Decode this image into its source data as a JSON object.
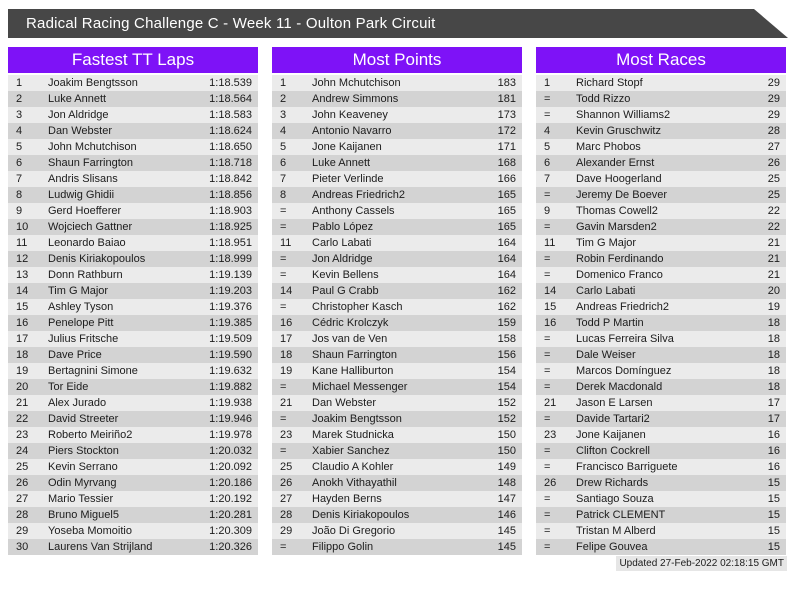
{
  "title": "Radical Racing Challenge C - Week 11 - Oulton Park Circuit",
  "updated": "Updated 27-Feb-2022 02:18:15 GMT",
  "colors": {
    "banner_bg": "#474747",
    "accent": "#7e12f7",
    "row_odd": "#ebebeb",
    "row_even": "#d3d3d3",
    "footer_bg": "#e6e6e6"
  },
  "boards": [
    {
      "title": "Fastest TT Laps",
      "rows": [
        {
          "rank": "1",
          "name": "Joakim Bengtsson",
          "value": "1:18.539"
        },
        {
          "rank": "2",
          "name": "Luke Annett",
          "value": "1:18.564"
        },
        {
          "rank": "3",
          "name": "Jon Aldridge",
          "value": "1:18.583"
        },
        {
          "rank": "4",
          "name": "Dan Webster",
          "value": "1:18.624"
        },
        {
          "rank": "5",
          "name": "John Mchutchison",
          "value": "1:18.650"
        },
        {
          "rank": "6",
          "name": "Shaun Farrington",
          "value": "1:18.718"
        },
        {
          "rank": "7",
          "name": "Andris Slisans",
          "value": "1:18.842"
        },
        {
          "rank": "8",
          "name": "Ludwig Ghidii",
          "value": "1:18.856"
        },
        {
          "rank": "9",
          "name": "Gerd Hoefferer",
          "value": "1:18.903"
        },
        {
          "rank": "10",
          "name": "Wojciech Gattner",
          "value": "1:18.925"
        },
        {
          "rank": "11",
          "name": "Leonardo Baiao",
          "value": "1:18.951"
        },
        {
          "rank": "12",
          "name": "Denis Kiriakopoulos",
          "value": "1:18.999"
        },
        {
          "rank": "13",
          "name": "Donn Rathburn",
          "value": "1:19.139"
        },
        {
          "rank": "14",
          "name": "Tim G Major",
          "value": "1:19.203"
        },
        {
          "rank": "15",
          "name": "Ashley Tyson",
          "value": "1:19.376"
        },
        {
          "rank": "16",
          "name": "Penelope Pitt",
          "value": "1:19.385"
        },
        {
          "rank": "17",
          "name": "Julius Fritsche",
          "value": "1:19.509"
        },
        {
          "rank": "18",
          "name": "Dave Price",
          "value": "1:19.590"
        },
        {
          "rank": "19",
          "name": "Bertagnini Simone",
          "value": "1:19.632"
        },
        {
          "rank": "20",
          "name": "Tor Eide",
          "value": "1:19.882"
        },
        {
          "rank": "21",
          "name": "Alex Jurado",
          "value": "1:19.938"
        },
        {
          "rank": "22",
          "name": "David Streeter",
          "value": "1:19.946"
        },
        {
          "rank": "23",
          "name": "Roberto Meiriño2",
          "value": "1:19.978"
        },
        {
          "rank": "24",
          "name": "Piers Stockton",
          "value": "1:20.032"
        },
        {
          "rank": "25",
          "name": "Kevin Serrano",
          "value": "1:20.092"
        },
        {
          "rank": "26",
          "name": "Odin Myrvang",
          "value": "1:20.186"
        },
        {
          "rank": "27",
          "name": "Mario Tessier",
          "value": "1:20.192"
        },
        {
          "rank": "28",
          "name": "Bruno Miguel5",
          "value": "1:20.281"
        },
        {
          "rank": "29",
          "name": "Yoseba Momoitio",
          "value": "1:20.309"
        },
        {
          "rank": "30",
          "name": "Laurens Van Strijland",
          "value": "1:20.326"
        }
      ]
    },
    {
      "title": "Most Points",
      "rows": [
        {
          "rank": "1",
          "name": "John Mchutchison",
          "value": "183"
        },
        {
          "rank": "2",
          "name": "Andrew Simmons",
          "value": "181"
        },
        {
          "rank": "3",
          "name": "John Keaveney",
          "value": "173"
        },
        {
          "rank": "4",
          "name": "Antonio Navarro",
          "value": "172"
        },
        {
          "rank": "5",
          "name": "Jone Kaijanen",
          "value": "171"
        },
        {
          "rank": "6",
          "name": "Luke Annett",
          "value": "168"
        },
        {
          "rank": "7",
          "name": "Pieter Verlinde",
          "value": "166"
        },
        {
          "rank": "8",
          "name": "Andreas Friedrich2",
          "value": "165"
        },
        {
          "rank": "=",
          "name": "Anthony Cassels",
          "value": "165"
        },
        {
          "rank": "=",
          "name": "Pablo López",
          "value": "165"
        },
        {
          "rank": "11",
          "name": "Carlo Labati",
          "value": "164"
        },
        {
          "rank": "=",
          "name": "Jon Aldridge",
          "value": "164"
        },
        {
          "rank": "=",
          "name": "Kevin Bellens",
          "value": "164"
        },
        {
          "rank": "14",
          "name": "Paul G Crabb",
          "value": "162"
        },
        {
          "rank": "=",
          "name": "Christopher Kasch",
          "value": "162"
        },
        {
          "rank": "16",
          "name": "Cédric Krolczyk",
          "value": "159"
        },
        {
          "rank": "17",
          "name": "Jos van de Ven",
          "value": "158"
        },
        {
          "rank": "18",
          "name": "Shaun Farrington",
          "value": "156"
        },
        {
          "rank": "19",
          "name": "Kane Halliburton",
          "value": "154"
        },
        {
          "rank": "=",
          "name": "Michael Messenger",
          "value": "154"
        },
        {
          "rank": "21",
          "name": "Dan Webster",
          "value": "152"
        },
        {
          "rank": "=",
          "name": "Joakim Bengtsson",
          "value": "152"
        },
        {
          "rank": "23",
          "name": "Marek Studnicka",
          "value": "150"
        },
        {
          "rank": "=",
          "name": "Xabier Sanchez",
          "value": "150"
        },
        {
          "rank": "25",
          "name": "Claudio A Kohler",
          "value": "149"
        },
        {
          "rank": "26",
          "name": "Anokh Vithayathil",
          "value": "148"
        },
        {
          "rank": "27",
          "name": "Hayden Berns",
          "value": "147"
        },
        {
          "rank": "28",
          "name": "Denis Kiriakopoulos",
          "value": "146"
        },
        {
          "rank": "29",
          "name": "João Di Gregorio",
          "value": "145"
        },
        {
          "rank": "=",
          "name": "Filippo Golin",
          "value": "145"
        }
      ]
    },
    {
      "title": "Most Races",
      "rows": [
        {
          "rank": "1",
          "name": "Richard Stopf",
          "value": "29"
        },
        {
          "rank": "=",
          "name": "Todd Rizzo",
          "value": "29"
        },
        {
          "rank": "=",
          "name": "Shannon Williams2",
          "value": "29"
        },
        {
          "rank": "4",
          "name": "Kevin Gruschwitz",
          "value": "28"
        },
        {
          "rank": "5",
          "name": "Marc Phobos",
          "value": "27"
        },
        {
          "rank": "6",
          "name": "Alexander Ernst",
          "value": "26"
        },
        {
          "rank": "7",
          "name": "Dave Hoogerland",
          "value": "25"
        },
        {
          "rank": "=",
          "name": "Jeremy De Boever",
          "value": "25"
        },
        {
          "rank": "9",
          "name": "Thomas Cowell2",
          "value": "22"
        },
        {
          "rank": "=",
          "name": "Gavin Marsden2",
          "value": "22"
        },
        {
          "rank": "11",
          "name": "Tim G Major",
          "value": "21"
        },
        {
          "rank": "=",
          "name": "Robin Ferdinando",
          "value": "21"
        },
        {
          "rank": "=",
          "name": "Domenico Franco",
          "value": "21"
        },
        {
          "rank": "14",
          "name": "Carlo Labati",
          "value": "20"
        },
        {
          "rank": "15",
          "name": "Andreas Friedrich2",
          "value": "19"
        },
        {
          "rank": "16",
          "name": "Todd P Martin",
          "value": "18"
        },
        {
          "rank": "=",
          "name": "Lucas Ferreira Silva",
          "value": "18"
        },
        {
          "rank": "=",
          "name": "Dale Weiser",
          "value": "18"
        },
        {
          "rank": "=",
          "name": "Marcos Domínguez",
          "value": "18"
        },
        {
          "rank": "=",
          "name": "Derek Macdonald",
          "value": "18"
        },
        {
          "rank": "21",
          "name": "Jason E Larsen",
          "value": "17"
        },
        {
          "rank": "=",
          "name": "Davide Tartari2",
          "value": "17"
        },
        {
          "rank": "23",
          "name": "Jone Kaijanen",
          "value": "16"
        },
        {
          "rank": "=",
          "name": "Clifton Cockrell",
          "value": "16"
        },
        {
          "rank": "=",
          "name": "Francisco Barriguete",
          "value": "16"
        },
        {
          "rank": "26",
          "name": "Drew Richards",
          "value": "15"
        },
        {
          "rank": "=",
          "name": "Santiago Souza",
          "value": "15"
        },
        {
          "rank": "=",
          "name": "Patrick CLEMENT",
          "value": "15"
        },
        {
          "rank": "=",
          "name": "Tristan M Alberd",
          "value": "15"
        },
        {
          "rank": "=",
          "name": "Felipe Gouvea",
          "value": "15"
        }
      ]
    }
  ]
}
